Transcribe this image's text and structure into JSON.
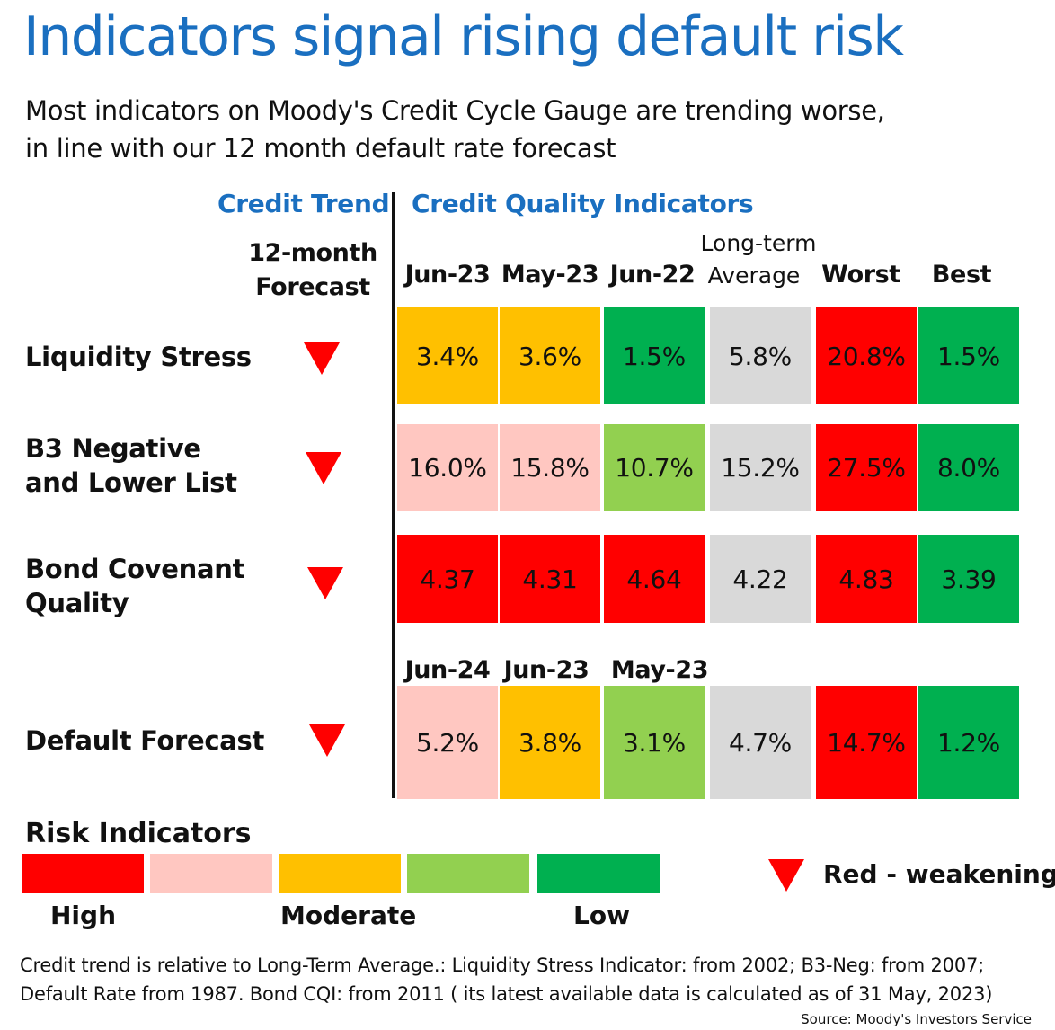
{
  "title": "Indicators signal rising default risk",
  "subtitle": [
    "Most indicators on Moody's Credit Cycle Gauge are trending worse,",
    "in line with our 12 month default rate forecast"
  ],
  "credit_trend_heading": "Credit Trend",
  "cqi_heading": "Credit Quality Indicators",
  "forecast_heading": [
    "12-month",
    "Forecast"
  ],
  "columns": [
    "Jun-23",
    "May-23",
    "Jun-22",
    "Average",
    "Worst",
    "Best"
  ],
  "column_long_term": "Long-term",
  "default_columns": [
    "Jun-24",
    "Jun-23",
    "May-23"
  ],
  "colors": {
    "high": "#ff0000",
    "high_mod": "#ffc7c1",
    "moderate": "#ffc000",
    "low_mod": "#92d050",
    "low": "#00b050",
    "average": "#d9d9d9",
    "triangle": "#ff0000",
    "title_blue": "#1a6fc0"
  },
  "chart_data": {
    "type": "table",
    "rows": [
      {
        "label": [
          "Liquidity Stress"
        ],
        "trend": "weakening",
        "values": [
          "3.4%",
          "3.6%",
          "1.5%",
          "5.8%",
          "20.8%",
          "1.5%"
        ],
        "levels": [
          "moderate",
          "moderate",
          "low",
          "average",
          "high",
          "low"
        ]
      },
      {
        "label": [
          "B3 Negative",
          "and Lower List"
        ],
        "trend": "weakening",
        "values": [
          "16.0%",
          "15.8%",
          "10.7%",
          "15.2%",
          "27.5%",
          "8.0%"
        ],
        "levels": [
          "high_mod",
          "high_mod",
          "low_mod",
          "average",
          "high",
          "low"
        ]
      },
      {
        "label": [
          "Bond Covenant",
          "Quality"
        ],
        "trend": "weakening",
        "values": [
          "4.37",
          "4.31",
          "4.64",
          "4.22",
          "4.83",
          "3.39"
        ],
        "levels": [
          "high",
          "high",
          "high",
          "average",
          "high",
          "low"
        ]
      },
      {
        "label": [
          "Default Forecast"
        ],
        "trend": "weakening",
        "values": [
          "5.2%",
          "3.8%",
          "3.1%",
          "4.7%",
          "14.7%",
          "1.2%"
        ],
        "levels": [
          "high_mod",
          "moderate",
          "low_mod",
          "average",
          "high",
          "low"
        ]
      }
    ]
  },
  "legend": {
    "title": "Risk Indicators",
    "swatches": [
      "high",
      "high_mod",
      "moderate",
      "low_mod",
      "low"
    ],
    "labels": [
      "High",
      "Moderate",
      "Low"
    ],
    "trend_label": "Red - weakening"
  },
  "footnote": [
    "Credit trend is relative to Long-Term Average.: Liquidity Stress Indicator: from 2002; B3-Neg: from 2007;",
    "Default Rate from 1987. Bond CQI: from 2011 ( its latest available data is calculated as of 31 May, 2023)"
  ],
  "source": "Source: Moody's Investors Service"
}
